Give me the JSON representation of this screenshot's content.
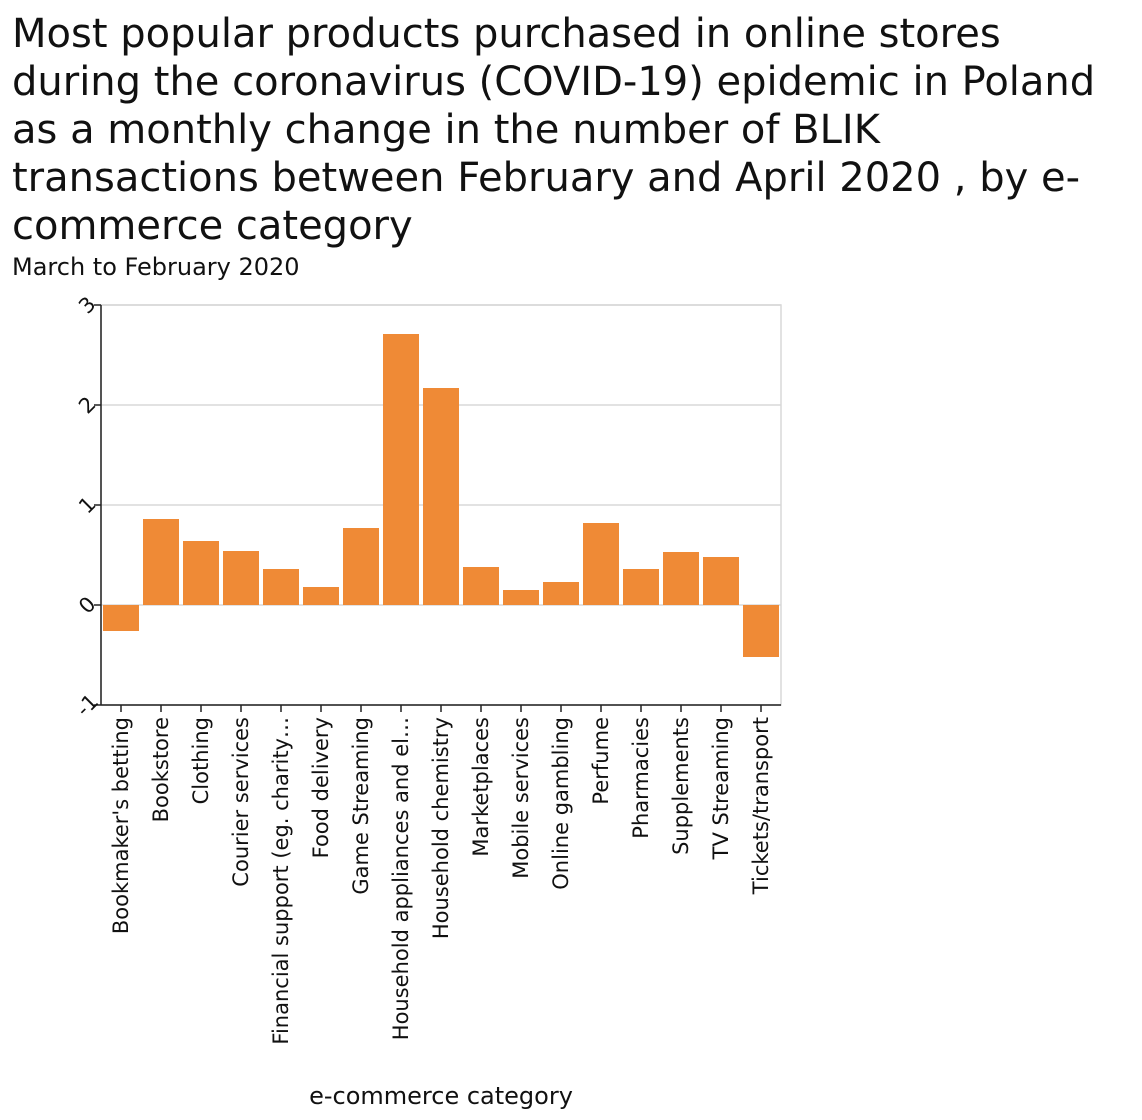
{
  "chart_data": {
    "type": "bar",
    "title": "Most popular products purchased in online stores during the coronavirus (COVID-19) epidemic in Poland as a monthly change in the number of BLIK transactions between February and April 2020 , by e-commerce category",
    "subtitle": "March to February 2020",
    "xlabel": "e-commerce category",
    "ylabel": "",
    "categories": [
      "Bookmaker's betting",
      "Bookstore",
      "Clothing",
      "Courier services",
      "Financial support (eg. charity…",
      "Food delivery",
      "Game Streaming",
      "Household appliances and el…",
      "Household chemistry",
      "Marketplaces",
      "Mobile services",
      "Online gambling",
      "Perfume",
      "Pharmacies",
      "Supplements",
      "TV Streaming",
      "Tickets/transport"
    ],
    "values": [
      -0.26,
      0.86,
      0.64,
      0.54,
      0.36,
      0.18,
      0.77,
      2.71,
      2.17,
      0.38,
      0.15,
      0.23,
      0.82,
      0.36,
      0.53,
      0.48,
      -0.52
    ],
    "ylim": [
      -1,
      3
    ],
    "yticks": [
      -1,
      0,
      1,
      2,
      3
    ],
    "grid": true,
    "legend": "none",
    "bar_color": "#ef8a36"
  }
}
